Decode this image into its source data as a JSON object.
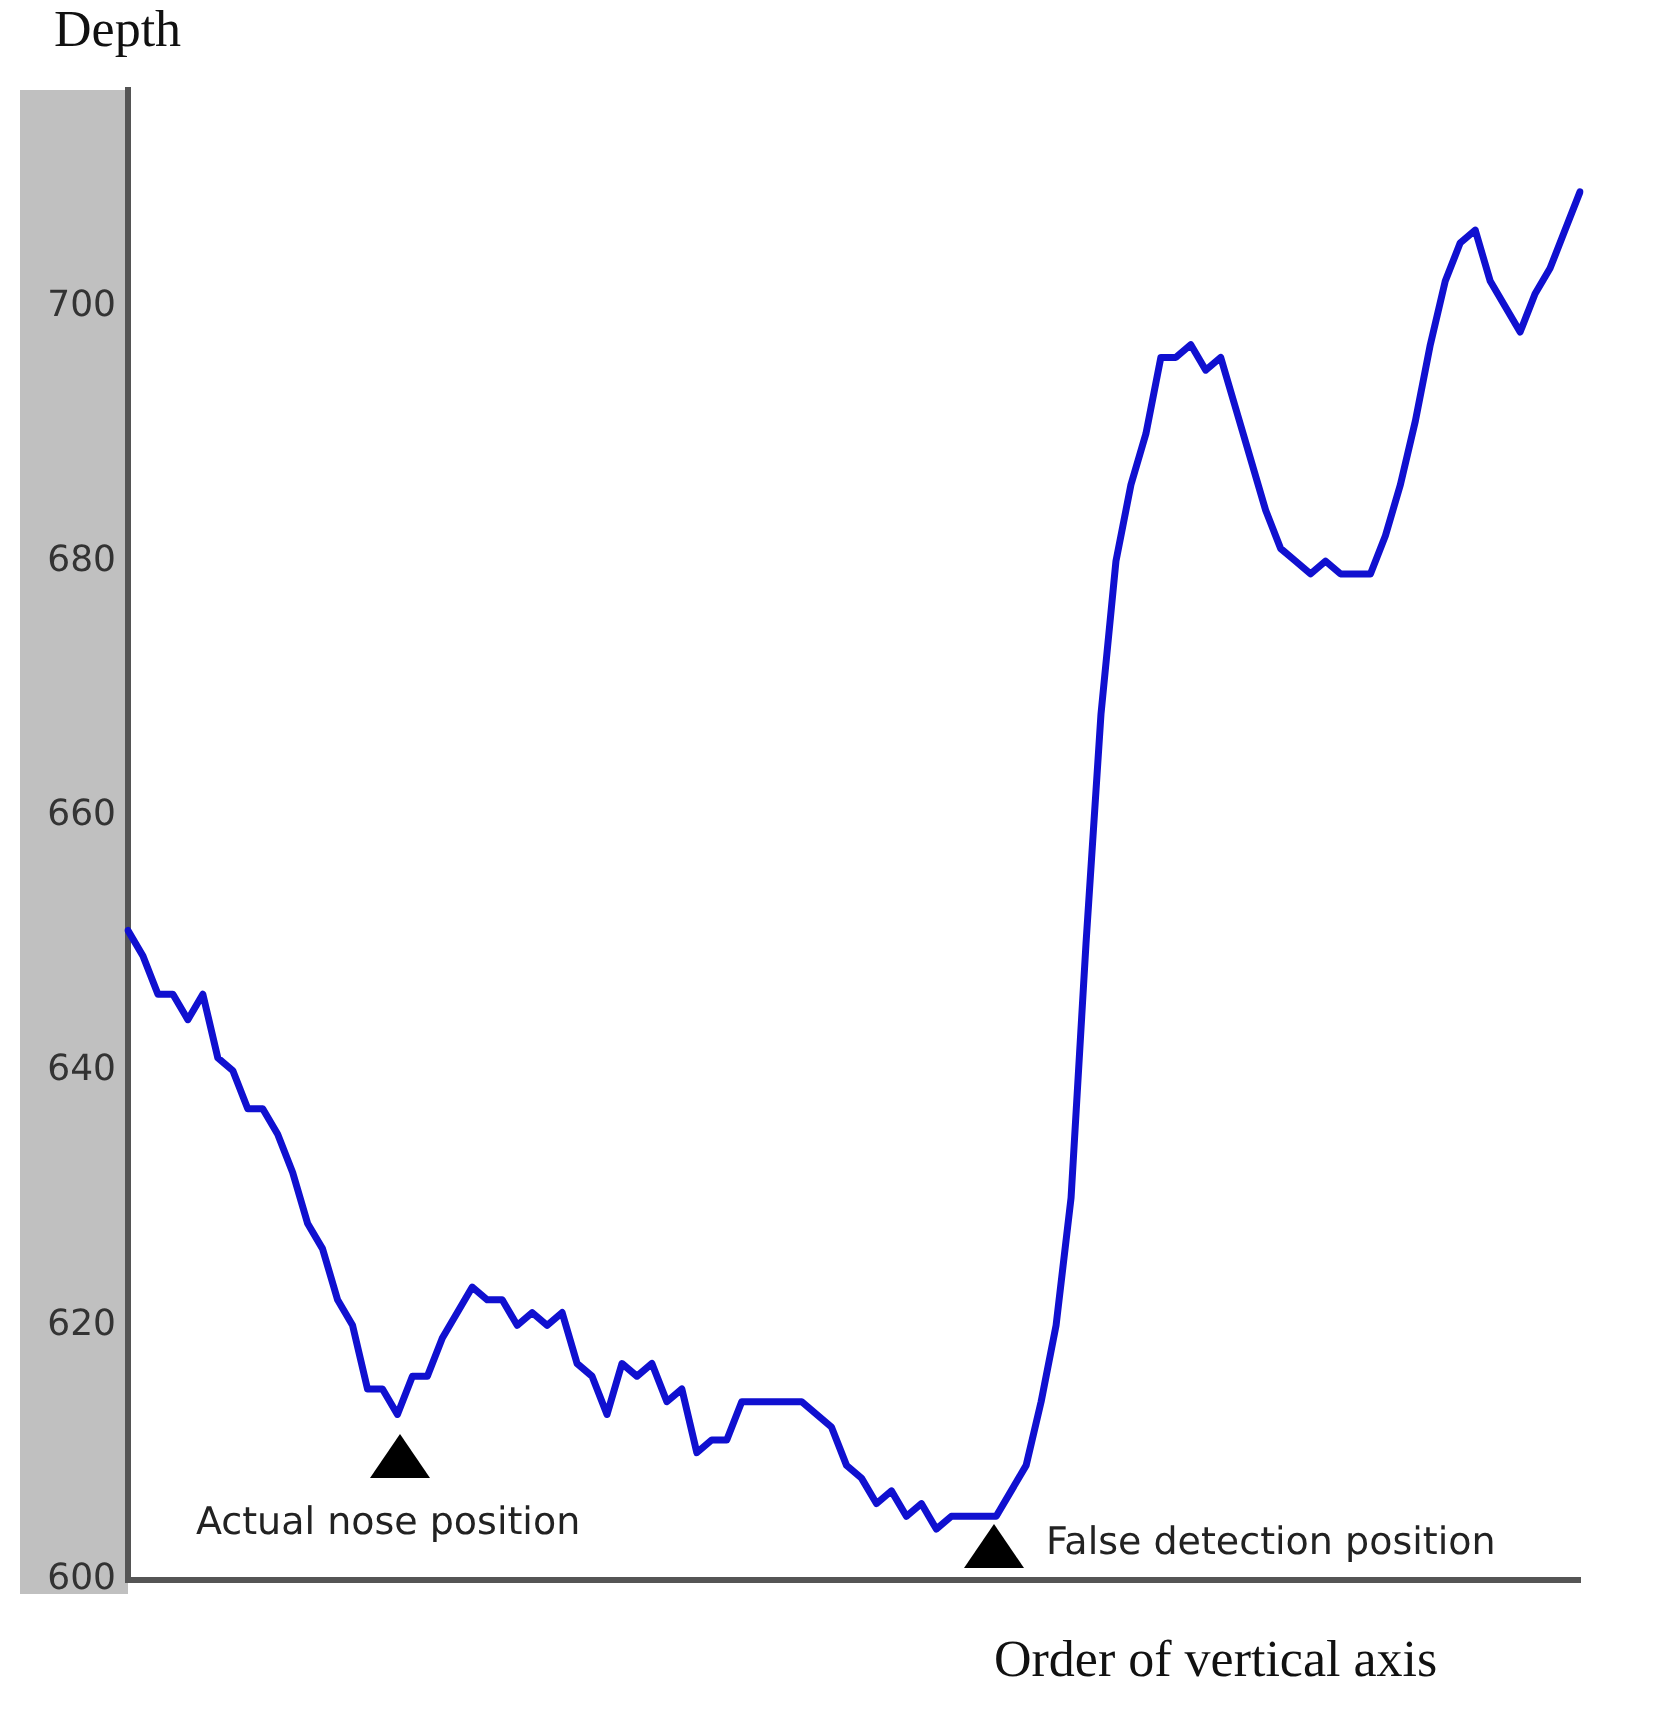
{
  "chart_data": {
    "type": "line",
    "ylabel": "Depth",
    "xlabel": "Order of vertical axis",
    "annotations": [
      "Actual nose position",
      "False detection position"
    ],
    "categories": [
      null,
      null,
      null,
      null,
      null,
      null,
      null,
      null,
      null,
      null,
      null,
      null,
      null,
      null,
      null,
      null,
      null,
      null,
      null,
      null,
      null,
      null,
      null,
      null,
      null,
      null,
      null,
      null,
      null,
      null,
      null,
      null,
      null,
      null,
      null,
      null,
      null,
      null,
      null,
      null,
      null,
      null,
      null,
      null,
      null,
      null,
      null,
      null,
      null,
      null,
      null,
      null,
      null,
      null,
      null,
      null,
      null,
      null,
      null,
      null,
      null,
      null,
      null,
      null,
      null,
      null,
      null,
      null,
      null,
      null,
      null,
      null,
      null,
      null,
      null,
      null,
      null,
      null,
      null,
      null,
      null,
      null,
      null,
      null,
      null,
      null,
      null,
      null,
      null,
      null,
      null,
      null,
      null,
      null,
      null,
      null,
      null,
      null
    ],
    "series": [
      {
        "color": "#1010d0",
        "values": [
          651,
          649,
          646,
          646,
          644,
          646,
          641,
          640,
          637,
          637,
          635,
          632,
          628,
          626,
          622,
          620,
          615,
          615,
          613,
          616,
          616,
          619,
          621,
          623,
          622,
          622,
          620,
          621,
          620,
          621,
          617,
          616,
          613,
          617,
          616,
          617,
          614,
          615,
          610,
          611,
          611,
          614,
          614,
          614,
          614,
          614,
          613,
          612,
          609,
          608,
          606,
          607,
          605,
          606,
          604,
          605,
          605,
          605,
          605,
          607,
          609,
          614,
          620,
          630,
          650,
          668,
          680,
          686,
          690,
          696,
          696,
          697,
          695,
          696,
          692,
          688,
          684,
          681,
          680,
          679,
          680,
          679,
          679,
          679,
          682,
          686,
          691,
          697,
          702,
          705,
          706,
          702,
          700,
          698,
          701,
          703,
          706,
          709
        ]
      }
    ],
    "ylim": [
      600,
      717
    ],
    "yticks": [
      600,
      620,
      640,
      660,
      680,
      700
    ],
    "grid": false,
    "legend": false,
    "marker": "none",
    "line_style": "solid"
  }
}
